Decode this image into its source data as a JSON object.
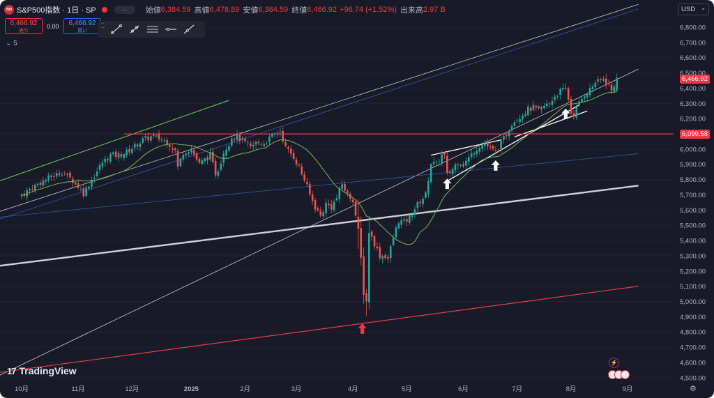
{
  "header": {
    "symbol_badge": "500",
    "title": "S&P500指数 · 1日 · SP",
    "ohlc": [
      {
        "label": "始値",
        "value": "6,384.59"
      },
      {
        "label": "高値",
        "value": "6,478.89"
      },
      {
        "label": "安値",
        "value": "6,384.59"
      },
      {
        "label": "終値",
        "value": "6,466.92"
      }
    ],
    "change": "+96.74 (+1.52%)",
    "volume_label": "出来高",
    "volume_value": "2.97 B"
  },
  "trade": {
    "sell_price": "6,466.92",
    "sell_label": "売り",
    "spread": "0.00",
    "buy_price": "6,466.92",
    "buy_label": "買い"
  },
  "indicators_count": "5",
  "currency": "USD",
  "current_price_label": "6,466.92",
  "level_price_label": "6,099.58",
  "brand": "TradingView",
  "colors": {
    "up": "#26a69a",
    "down": "#ef5350",
    "accent": "#f23645",
    "ma": "#6fa85b",
    "channel": "#c8c8d0",
    "blue_line": "#3d54b8"
  },
  "chart_data": {
    "type": "candlestick",
    "y_ticks": [
      4500,
      4600,
      4700,
      4800,
      4900,
      5000,
      5100,
      5200,
      5300,
      5400,
      5500,
      5600,
      5700,
      5800,
      5900,
      6000,
      6100,
      6200,
      6300,
      6400,
      6500,
      6600,
      6700,
      6800
    ],
    "x_ticks": [
      {
        "label": "10月",
        "t": 0
      },
      {
        "label": "11月",
        "t": 21
      },
      {
        "label": "12月",
        "t": 41
      },
      {
        "label": "2025",
        "t": 63
      },
      {
        "label": "2月",
        "t": 83
      },
      {
        "label": "3月",
        "t": 102
      },
      {
        "label": "4月",
        "t": 123
      },
      {
        "label": "5月",
        "t": 143
      },
      {
        "label": "6月",
        "t": 164
      },
      {
        "label": "7月",
        "t": 184
      },
      {
        "label": "8月",
        "t": 204
      },
      {
        "label": "9月",
        "t": 225
      }
    ],
    "horizontal_level": 6099.58,
    "close_path": [
      [
        0,
        5700
      ],
      [
        5,
        5760
      ],
      [
        10,
        5810
      ],
      [
        15,
        5850
      ],
      [
        20,
        5780
      ],
      [
        23,
        5710
      ],
      [
        26,
        5800
      ],
      [
        30,
        5910
      ],
      [
        33,
        5960
      ],
      [
        36,
        5960
      ],
      [
        39,
        5980
      ],
      [
        42,
        6020
      ],
      [
        45,
        6060
      ],
      [
        48,
        6080
      ],
      [
        51,
        6070
      ],
      [
        54,
        6050
      ],
      [
        57,
        5990
      ],
      [
        58,
        5880
      ],
      [
        60,
        5980
      ],
      [
        63,
        6000
      ],
      [
        66,
        5900
      ],
      [
        70,
        5960
      ],
      [
        72,
        5840
      ],
      [
        73,
        5870
      ],
      [
        75,
        5980
      ],
      [
        77,
        6040
      ],
      [
        78,
        6080
      ],
      [
        80,
        6080
      ],
      [
        83,
        6040
      ],
      [
        85,
        6010
      ],
      [
        87,
        6040
      ],
      [
        90,
        6040
      ],
      [
        93,
        6080
      ],
      [
        95,
        6110
      ],
      [
        96,
        6120
      ],
      [
        98,
        6010
      ],
      [
        101,
        5950
      ],
      [
        103,
        5880
      ],
      [
        105,
        5800
      ],
      [
        107,
        5700
      ],
      [
        109,
        5620
      ],
      [
        111,
        5560
      ],
      [
        113,
        5640
      ],
      [
        115,
        5620
      ],
      [
        117,
        5680
      ],
      [
        119,
        5770
      ],
      [
        121,
        5700
      ],
      [
        123,
        5670
      ],
      [
        125,
        5460
      ],
      [
        126,
        5280
      ],
      [
        127,
        5060
      ],
      [
        128,
        5000
      ],
      [
        129,
        5460
      ],
      [
        131,
        5380
      ],
      [
        133,
        5300
      ],
      [
        135,
        5300
      ],
      [
        136,
        5280
      ],
      [
        138,
        5420
      ],
      [
        140,
        5530
      ],
      [
        142,
        5520
      ],
      [
        144,
        5550
      ],
      [
        146,
        5610
      ],
      [
        148,
        5660
      ],
      [
        150,
        5700
      ],
      [
        152,
        5910
      ],
      [
        154,
        5900
      ],
      [
        156,
        5960
      ],
      [
        157,
        5950
      ],
      [
        158,
        5830
      ],
      [
        160,
        5870
      ],
      [
        162,
        5920
      ],
      [
        164,
        5900
      ],
      [
        166,
        5940
      ],
      [
        168,
        5990
      ],
      [
        170,
        6020
      ],
      [
        172,
        6040
      ],
      [
        174,
        6000
      ],
      [
        176,
        5980
      ],
      [
        178,
        6040
      ],
      [
        180,
        6100
      ],
      [
        182,
        6170
      ],
      [
        184,
        6200
      ],
      [
        186,
        6230
      ],
      [
        188,
        6260
      ],
      [
        190,
        6270
      ],
      [
        192,
        6250
      ],
      [
        194,
        6280
      ],
      [
        196,
        6300
      ],
      [
        198,
        6350
      ],
      [
        200,
        6380
      ],
      [
        202,
        6390
      ],
      [
        203,
        6330
      ],
      [
        204,
        6240
      ],
      [
        205,
        6230
      ],
      [
        207,
        6300
      ],
      [
        209,
        6360
      ],
      [
        211,
        6390
      ],
      [
        213,
        6440
      ],
      [
        214,
        6440
      ],
      [
        216,
        6460
      ],
      [
        218,
        6420
      ],
      [
        219,
        6380
      ],
      [
        221,
        6466.92
      ]
    ],
    "annotations": {
      "up_arrows": [
        {
          "t": 158,
          "p": 5770
        },
        {
          "t": 176,
          "p": 5890
        },
        {
          "t": 202,
          "p": 6230
        }
      ],
      "red_arrow": {
        "t": 126.5,
        "p": 4820
      }
    }
  }
}
